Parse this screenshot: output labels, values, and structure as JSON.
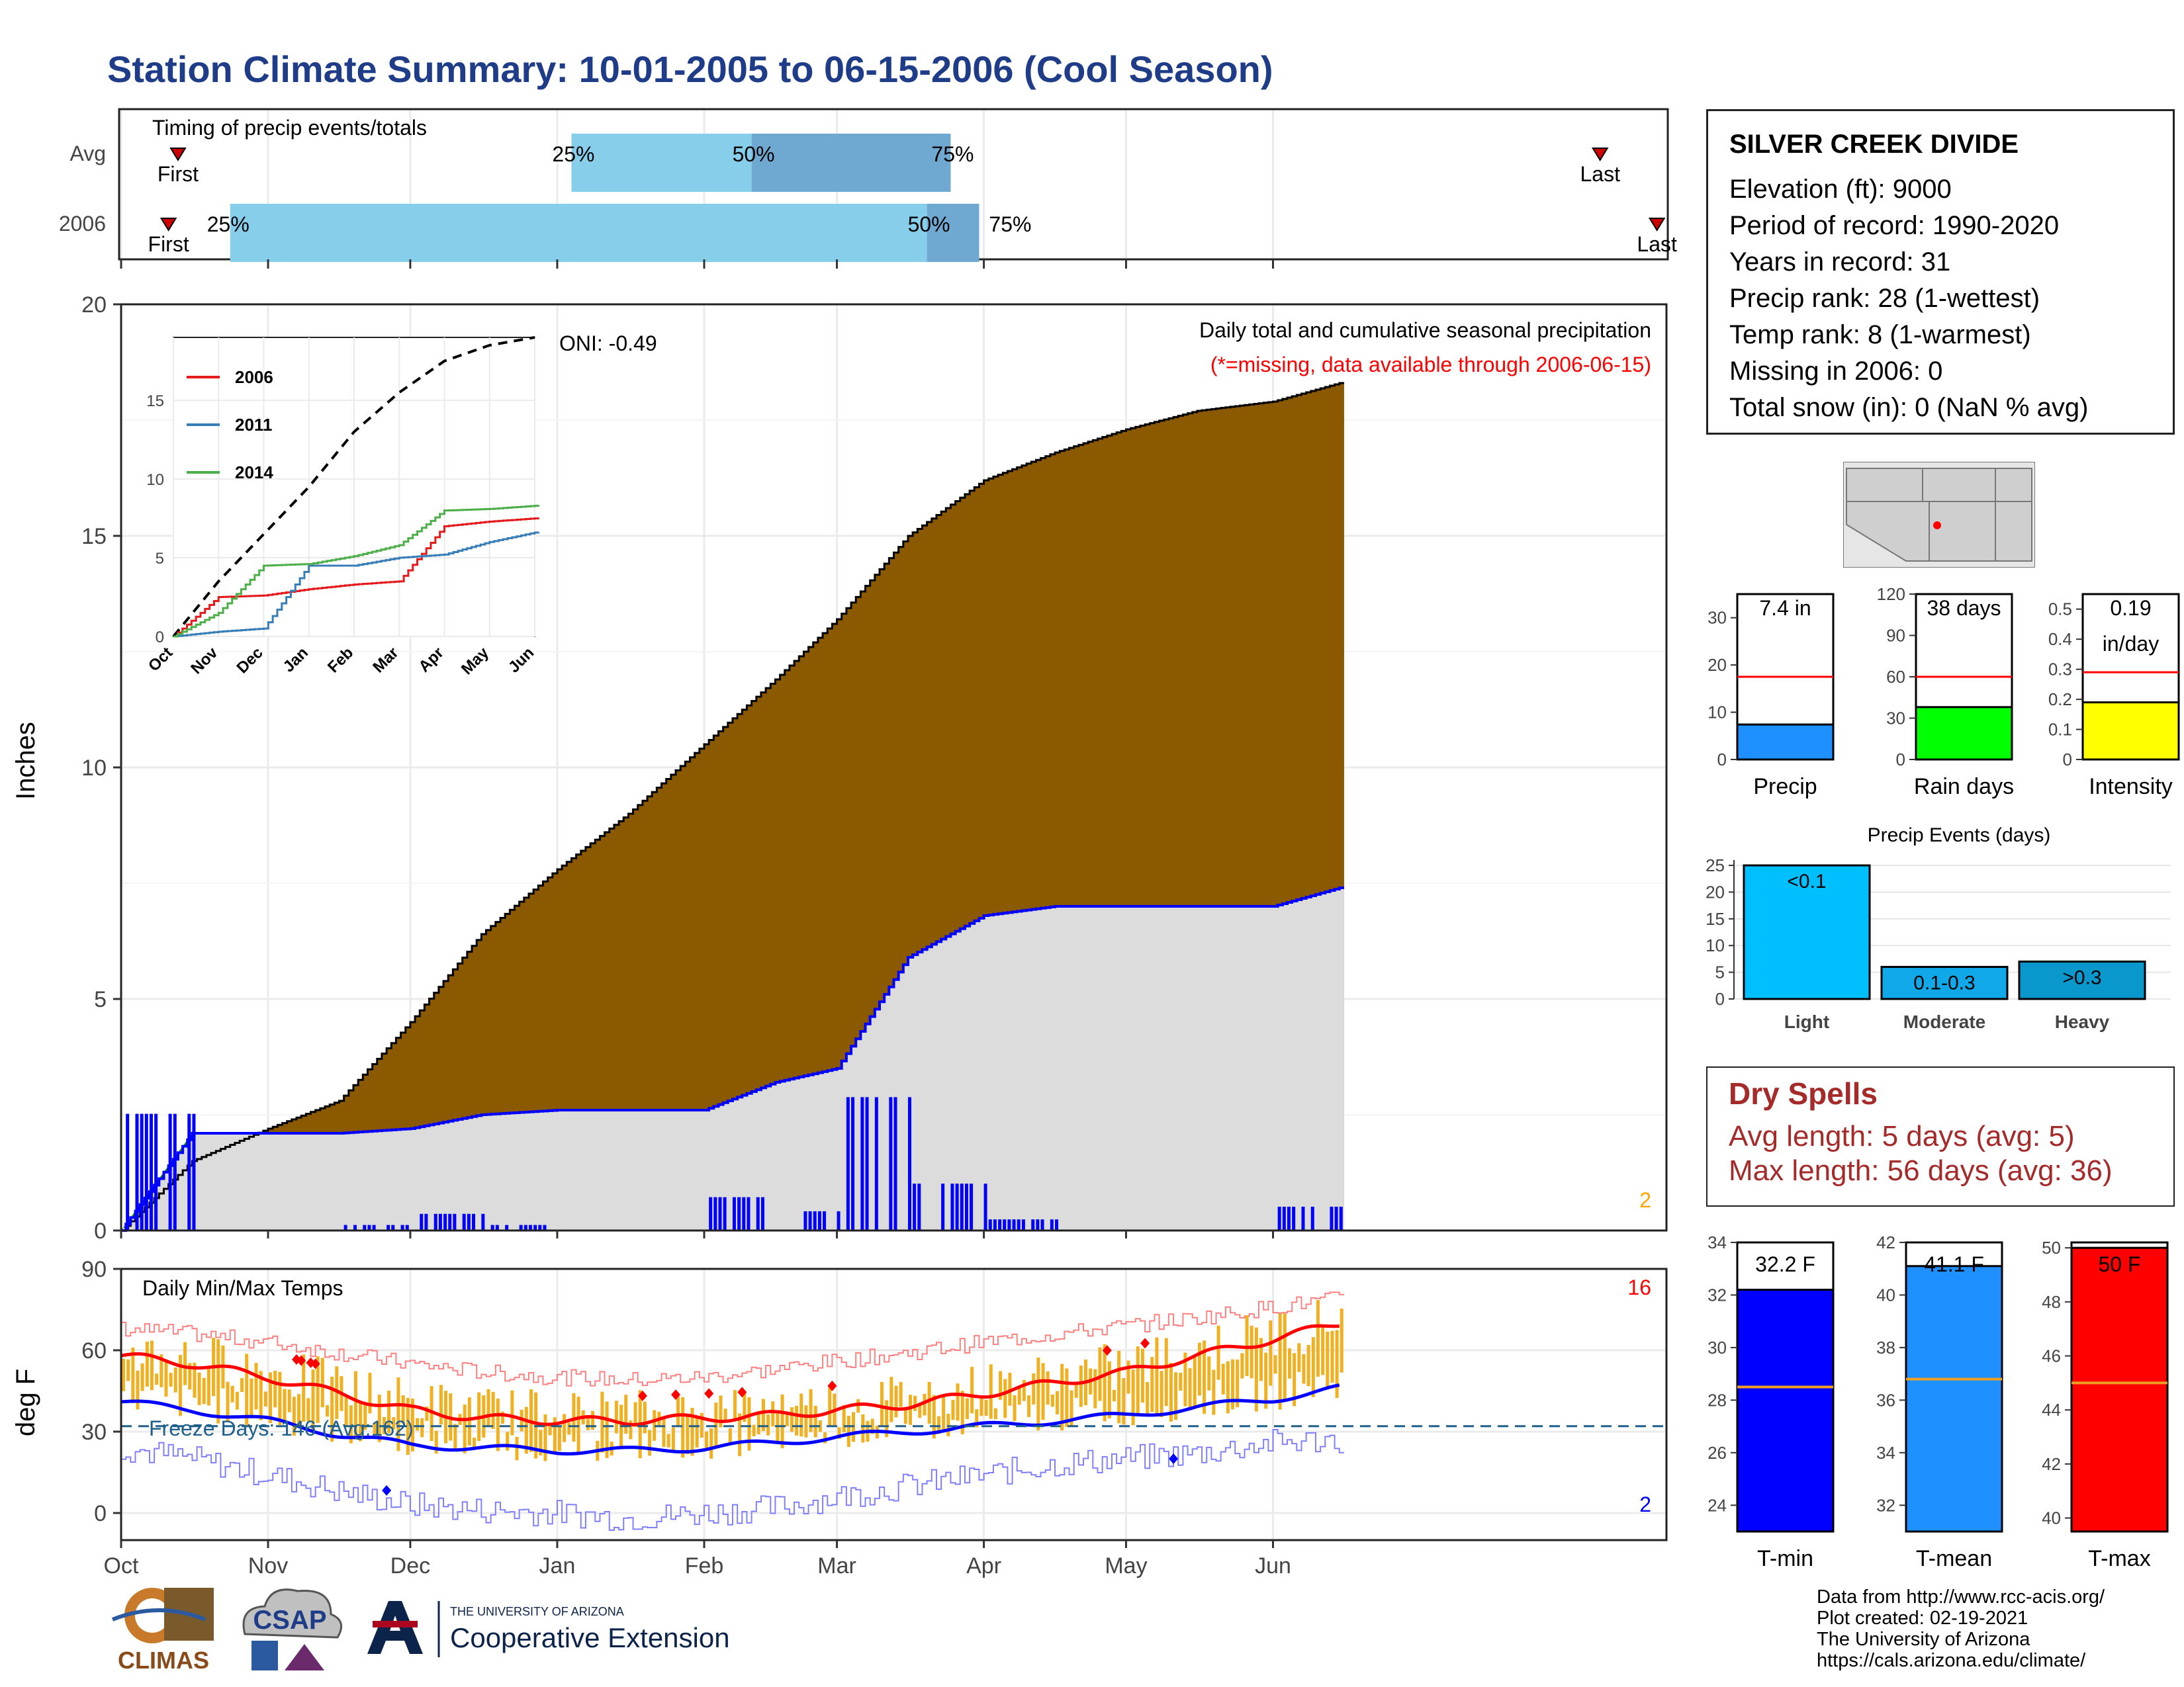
{
  "title": "Station Climate Summary: 10-01-2005 to 06-15-2006 (Cool Season)",
  "timing": {
    "label": "Timing of precip events/totals",
    "row_labels": [
      "Avg",
      "2006"
    ],
    "rows": [
      {
        "name": "Avg",
        "first_day": 12,
        "p25_day": 95,
        "p50_day": 133,
        "p75_day": 175,
        "last_day": 312,
        "p25_label": "25%",
        "p50_label": "50%",
        "p75_label": "75%",
        "first_label": "First",
        "last_label": "Last"
      },
      {
        "name": "2006",
        "first_day": 10,
        "p25_day": 23,
        "p50_day": 170,
        "p75_day": 181,
        "last_day": 324,
        "p25_label": "25%",
        "p50_label": "50%",
        "p75_label": "75%",
        "first_label": "First",
        "last_label": "Last"
      }
    ]
  },
  "station": {
    "name": "SILVER CREEK DIVIDE",
    "lines": [
      "Elevation (ft): 9000",
      "Period of record: 1990-2020",
      "Years in record: 31",
      "Precip rank: 28 (1-wettest)",
      "Temp rank: 8 (1-warmest)",
      "Missing in 2006: 0",
      "Total snow (in): 0 (NaN % avg)"
    ]
  },
  "precip_panel": {
    "ylabel": "Inches",
    "subtitle": "Daily total and cumulative seasonal precipitation",
    "missing_note": "(*=missing, data available through 2006-06-15)",
    "oni": "ONI: -0.49",
    "count_label": "2",
    "xlabels": [
      "Oct",
      "Nov",
      "Dec",
      "Jan",
      "Feb",
      "Mar",
      "Apr",
      "May",
      "Jun"
    ],
    "colors": {
      "avg_fill": "#8b5a00",
      "obs_fill": "#dcdcdc",
      "obs_line": "#0000ff",
      "wet_fill": "#008000"
    }
  },
  "inset": {
    "legend": [
      {
        "name": "2006",
        "color": "#e41a1c"
      },
      {
        "name": "2011",
        "color": "#377eb8"
      },
      {
        "name": "2014",
        "color": "#4daf4a"
      }
    ],
    "xlabels": [
      "Oct",
      "Nov",
      "Dec",
      "Jan",
      "Feb",
      "Mar",
      "Apr",
      "May",
      "Jun"
    ]
  },
  "gauges": [
    {
      "label": "Precip",
      "value_text": "7.4 in",
      "value": 7.4,
      "avg": 17.5,
      "ymax": 35,
      "ticks": [
        0,
        10,
        20,
        30
      ],
      "color": "#1e90ff"
    },
    {
      "label": "Rain days",
      "value_text": "38 days",
      "value": 38,
      "avg": 60,
      "ymax": 120,
      "ticks": [
        0,
        30,
        60,
        90,
        120
      ],
      "color": "#00ff00"
    },
    {
      "label": "Intensity",
      "value_text": "0.19",
      "value_text2": "in/day",
      "value": 0.19,
      "avg": 0.29,
      "ymax": 0.55,
      "ticks": [
        0.0,
        0.1,
        0.2,
        0.3,
        0.4,
        0.5
      ],
      "color": "#ffff00"
    }
  ],
  "events": {
    "title": "Precip Events (days)",
    "bars": [
      {
        "label": "Light",
        "bar_text": "<0.1",
        "value": 25,
        "color": "#00bfff"
      },
      {
        "label": "Moderate",
        "bar_text": "0.1-0.3",
        "value": 6,
        "color": "#10a8e8"
      },
      {
        "label": "Heavy",
        "bar_text": ">0.3",
        "value": 7,
        "color": "#0a97cc"
      }
    ],
    "ticks": [
      0,
      5,
      10,
      15,
      20,
      25
    ]
  },
  "dry_spells": {
    "title": "Dry Spells",
    "avg_line": "Avg length: 5 days (avg: 5)",
    "max_line": "Max length: 56 days (avg: 36)"
  },
  "temp_panel": {
    "ylabel": "deg F",
    "title": "Daily Min/Max Temps",
    "freeze_label": "Freeze Days: 146 (Avg:162)",
    "hot_count": "16",
    "cold_count": "2",
    "yticks": [
      0,
      30,
      60,
      90
    ],
    "xlabels": [
      "Oct",
      "Nov",
      "Dec",
      "Jan",
      "Feb",
      "Mar",
      "Apr",
      "May",
      "Jun"
    ]
  },
  "temp_gauges": [
    {
      "label": "T-min",
      "value_text": "32.2 F",
      "value": 32.2,
      "avg": 28.5,
      "ymin": 23,
      "ymax": 34,
      "ticks": [
        24,
        26,
        28,
        30,
        32,
        34
      ],
      "color": "#0000ff"
    },
    {
      "label": "T-mean",
      "value_text": "41.1 F",
      "value": 41.1,
      "avg": 36.8,
      "ymin": 31,
      "ymax": 42,
      "ticks": [
        32,
        34,
        36,
        38,
        40,
        42
      ],
      "color": "#1e90ff"
    },
    {
      "label": "T-max",
      "value_text": "50 F",
      "value": 50,
      "avg": 45,
      "ymin": 39.5,
      "ymax": 50.2,
      "ticks": [
        40,
        42,
        44,
        46,
        48,
        50
      ],
      "color": "#ff0000"
    }
  ],
  "logos": {
    "climas": "CLIMAS",
    "csap": "CSAP",
    "ua_small": "THE UNIVERSITY OF ARIZONA",
    "ua_big": "Cooperative Extension"
  },
  "credits": [
    "Data from http://www.rcc-acis.org/",
    "Plot created: 02-19-2021",
    "The University of Arizona",
    "https://cals.arizona.edu/climate/"
  ],
  "chart_data": [
    {
      "type": "area",
      "title": "Daily total and cumulative seasonal precipitation",
      "ylabel": "Inches",
      "ylim": [
        0,
        20
      ],
      "x_dates": [
        "2005-10-01",
        "2005-10-16",
        "2005-11-01",
        "2005-11-16",
        "2005-12-01",
        "2005-12-16",
        "2006-01-01",
        "2006-01-16",
        "2006-02-01",
        "2006-02-16",
        "2006-03-01",
        "2006-03-16",
        "2006-04-01",
        "2006-04-16",
        "2006-05-01",
        "2006-05-16",
        "2006-06-01",
        "2006-06-15"
      ],
      "series": [
        {
          "values": [
            0.0,
            1.5,
            2.2,
            2.8,
            4.5,
            6.4,
            7.8,
            9.0,
            10.5,
            11.9,
            13.2,
            15.0,
            16.2,
            16.8,
            17.3,
            17.7,
            17.9,
            18.3
          ]
        },
        {
          "values": [
            0.0,
            2.1,
            2.1,
            2.1,
            2.2,
            2.5,
            2.6,
            2.6,
            2.6,
            3.2,
            3.5,
            5.9,
            6.8,
            7.0,
            7.0,
            7.0,
            7.0,
            7.4
          ]
        }
      ]
    },
    {
      "type": "line",
      "title": "",
      "ylim": [
        0,
        19
      ],
      "x": [
        "Oct",
        "Nov",
        "Dec",
        "Jan",
        "Feb",
        "Mar",
        "Apr",
        "May",
        "Jun"
      ],
      "series": [
        {
          "values": [
            0,
            3.5,
            6.5,
            9.5,
            13.0,
            15.5,
            17.5,
            18.5,
            19.0
          ]
        },
        {
          "name": "2006",
          "values": [
            0,
            2.5,
            2.6,
            3.0,
            3.3,
            3.5,
            7.0,
            7.3,
            7.5
          ]
        },
        {
          "name": "2011",
          "values": [
            0,
            0.3,
            0.5,
            4.5,
            4.5,
            5.0,
            5.2,
            6.0,
            6.6
          ]
        },
        {
          "name": "2014",
          "values": [
            0,
            1.5,
            4.5,
            4.6,
            5.1,
            5.8,
            8.0,
            8.1,
            8.3
          ]
        }
      ]
    },
    {
      "type": "line",
      "title": "Daily Min/Max Temps",
      "ylabel": "deg F",
      "ylim": [
        -10,
        90
      ],
      "x_dates": [
        "2005-10-01",
        "2005-10-16",
        "2005-11-01",
        "2005-11-16",
        "2005-12-01",
        "2005-12-16",
        "2006-01-01",
        "2006-01-16",
        "2006-02-01",
        "2006-02-16",
        "2006-03-01",
        "2006-03-16",
        "2006-04-01",
        "2006-04-16",
        "2006-05-01",
        "2006-05-16",
        "2006-06-01",
        "2006-06-15"
      ],
      "series": [
        {
          "values": [
            58,
            55,
            50,
            44,
            38,
            35,
            34,
            34,
            35,
            36,
            38,
            40,
            44,
            48,
            52,
            58,
            64,
            70
          ]
        },
        {
          "values": [
            41,
            38,
            34,
            29,
            25,
            24,
            23,
            23,
            24,
            26,
            28,
            30,
            32,
            34,
            36,
            39,
            42,
            46
          ]
        },
        {
          "values": [
            68,
            66,
            63,
            59,
            55,
            52,
            50,
            49,
            50,
            53,
            56,
            59,
            63,
            66,
            69,
            72,
            76,
            79
          ]
        },
        {
          "values": [
            24,
            20,
            14,
            8,
            3,
            1,
            0,
            -2,
            0,
            2,
            6,
            10,
            14,
            18,
            20,
            22,
            26,
            27
          ]
        },
        {
          "values": [
            32,
            32,
            32,
            32,
            32,
            32,
            32,
            32,
            32,
            32,
            32,
            32,
            32,
            32,
            32,
            32,
            32,
            32
          ]
        }
      ]
    }
  ]
}
